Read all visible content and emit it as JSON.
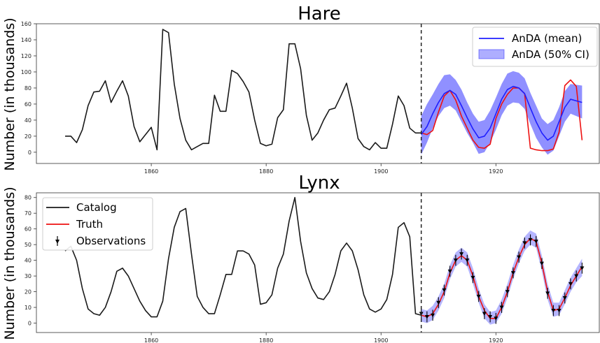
{
  "chart_data": [
    {
      "type": "line",
      "title": "Hare",
      "xlabel": "",
      "ylabel": "Number (in thousands)",
      "xlim": [
        1840,
        1938
      ],
      "ylim": [
        -14,
        160
      ],
      "xticks": [
        1860,
        1880,
        1900,
        1920
      ],
      "yticks": [
        0,
        20,
        40,
        60,
        80,
        100,
        120,
        140,
        160
      ],
      "vline_x": 1907,
      "legend": {
        "position": "top-right",
        "entries": [
          {
            "label": "AnDA (mean)",
            "kind": "line",
            "color": "#1f1fff"
          },
          {
            "label": "AnDA (50% CI)",
            "kind": "band",
            "color": "#6b6bff"
          }
        ]
      },
      "series": [
        {
          "name": "Catalog",
          "color": "#1a1a1a",
          "x": [
            1845,
            1846,
            1847,
            1848,
            1849,
            1850,
            1851,
            1852,
            1853,
            1854,
            1855,
            1856,
            1857,
            1858,
            1859,
            1860,
            1861,
            1862,
            1863,
            1864,
            1865,
            1866,
            1867,
            1868,
            1869,
            1870,
            1871,
            1872,
            1873,
            1874,
            1875,
            1876,
            1877,
            1878,
            1879,
            1880,
            1881,
            1882,
            1883,
            1884,
            1885,
            1886,
            1887,
            1888,
            1889,
            1890,
            1891,
            1892,
            1893,
            1894,
            1895,
            1896,
            1897,
            1898,
            1899,
            1900,
            1901,
            1902,
            1903,
            1904,
            1905,
            1906,
            1907
          ],
          "values": [
            20,
            20,
            12,
            28,
            58,
            75,
            76,
            89,
            62,
            76,
            89,
            70,
            32,
            13,
            22,
            31,
            3,
            153,
            149,
            85,
            42,
            15,
            3,
            7,
            11,
            11,
            71,
            51,
            51,
            102,
            98,
            88,
            75,
            40,
            11,
            8,
            10,
            43,
            53,
            135,
            135,
            104,
            46,
            15,
            24,
            40,
            53,
            55,
            70,
            86,
            55,
            17,
            7,
            3,
            12,
            5,
            5,
            35,
            70,
            58,
            30,
            24,
            24
          ]
        },
        {
          "name": "Truth",
          "color": "#ee1111",
          "x": [
            1907,
            1908,
            1909,
            1910,
            1911,
            1912,
            1913,
            1914,
            1915,
            1916,
            1917,
            1918,
            1919,
            1920,
            1921,
            1922,
            1923,
            1924,
            1925,
            1926,
            1927,
            1928,
            1929,
            1930,
            1931,
            1932,
            1933,
            1934,
            1935
          ],
          "values": [
            24,
            22,
            27,
            50,
            70,
            77,
            65,
            45,
            30,
            15,
            6,
            5,
            10,
            42,
            60,
            72,
            80,
            80,
            73,
            5,
            3,
            2,
            2,
            4,
            25,
            83,
            90,
            82,
            15
          ]
        },
        {
          "name": "AnDA (mean)",
          "color": "#1f1fff",
          "x": [
            1907,
            1908,
            1909,
            1910,
            1911,
            1912,
            1913,
            1914,
            1915,
            1916,
            1917,
            1918,
            1919,
            1920,
            1921,
            1922,
            1923,
            1924,
            1925,
            1926,
            1927,
            1928,
            1929,
            1930,
            1931,
            1932,
            1933,
            1934,
            1935
          ],
          "values": [
            22,
            32,
            48,
            62,
            73,
            77,
            72,
            58,
            43,
            29,
            18,
            20,
            30,
            48,
            66,
            78,
            82,
            80,
            73,
            55,
            38,
            24,
            15,
            20,
            38,
            56,
            66,
            64,
            62
          ]
        }
      ],
      "band": {
        "name": "AnDA (50% CI)",
        "x": [
          1907,
          1908,
          1909,
          1910,
          1911,
          1912,
          1913,
          1914,
          1915,
          1916,
          1917,
          1918,
          1919,
          1920,
          1921,
          1922,
          1923,
          1924,
          1925,
          1926,
          1927,
          1928,
          1929,
          1930,
          1931,
          1932,
          1933,
          1934,
          1935
        ],
        "lower": [
          -3,
          12,
          30,
          45,
          55,
          58,
          52,
          38,
          24,
          12,
          -2,
          0,
          12,
          28,
          46,
          58,
          62,
          61,
          54,
          35,
          18,
          6,
          -3,
          2,
          20,
          38,
          48,
          45,
          42
        ],
        "upper": [
          45,
          60,
          72,
          85,
          96,
          97,
          90,
          78,
          62,
          48,
          38,
          40,
          52,
          68,
          85,
          98,
          101,
          99,
          92,
          74,
          58,
          42,
          35,
          40,
          56,
          76,
          85,
          84,
          83
        ]
      }
    },
    {
      "type": "line",
      "title": "Lynx",
      "xlabel": "",
      "ylabel": "Number (in thousands)",
      "xlim": [
        1840,
        1938
      ],
      "ylim": [
        -6,
        83
      ],
      "xticks": [
        1860,
        1880,
        1900,
        1920
      ],
      "yticks": [
        0,
        10,
        20,
        30,
        40,
        50,
        60,
        70,
        80
      ],
      "vline_x": 1907,
      "legend": {
        "position": "top-left",
        "entries": [
          {
            "label": "Catalog",
            "kind": "line",
            "color": "#1a1a1a"
          },
          {
            "label": "Truth",
            "kind": "line",
            "color": "#ee1111"
          },
          {
            "label": "Observations",
            "kind": "errorbar",
            "color": "#000000"
          }
        ]
      },
      "series": [
        {
          "name": "Catalog",
          "color": "#1a1a1a",
          "x": [
            1845,
            1846,
            1847,
            1848,
            1849,
            1850,
            1851,
            1852,
            1853,
            1854,
            1855,
            1856,
            1857,
            1858,
            1859,
            1860,
            1861,
            1862,
            1863,
            1864,
            1865,
            1866,
            1867,
            1868,
            1869,
            1870,
            1871,
            1872,
            1873,
            1874,
            1875,
            1876,
            1877,
            1878,
            1879,
            1880,
            1881,
            1882,
            1883,
            1884,
            1885,
            1886,
            1887,
            1888,
            1889,
            1890,
            1891,
            1892,
            1893,
            1894,
            1895,
            1896,
            1897,
            1898,
            1899,
            1900,
            1901,
            1902,
            1903,
            1904,
            1905,
            1906,
            1907
          ],
          "values": [
            46,
            49,
            40,
            22,
            9,
            6,
            5,
            10,
            20,
            33,
            35,
            30,
            22,
            14,
            8,
            4,
            4,
            14,
            41,
            61,
            71,
            73,
            44,
            17,
            10,
            6,
            6,
            18,
            31,
            31,
            46,
            46,
            44,
            37,
            12,
            13,
            18,
            35,
            44,
            65,
            80,
            52,
            32,
            22,
            16,
            15,
            20,
            31,
            46,
            51,
            46,
            34,
            18,
            9,
            7,
            9,
            15,
            31,
            61,
            64,
            55,
            6,
            5
          ]
        },
        {
          "name": "Truth",
          "color": "#ee1111",
          "x": [
            1907,
            1908,
            1909,
            1910,
            1911,
            1912,
            1913,
            1914,
            1915,
            1916,
            1917,
            1918,
            1919,
            1920,
            1921,
            1922,
            1923,
            1924,
            1925,
            1926,
            1927,
            1928,
            1929,
            1930,
            1931,
            1932,
            1933,
            1934,
            1935
          ],
          "values": [
            5,
            4,
            6,
            12,
            20,
            32,
            40,
            43,
            40,
            30,
            17,
            8,
            3,
            3,
            10,
            20,
            32,
            42,
            50,
            54,
            52,
            38,
            20,
            8,
            9,
            16,
            24,
            30,
            36
          ]
        },
        {
          "name": "Observations",
          "color": "#000000",
          "x": [
            1907,
            1908,
            1909,
            1910,
            1911,
            1912,
            1913,
            1914,
            1915,
            1916,
            1917,
            1918,
            1919,
            1920,
            1921,
            1922,
            1923,
            1924,
            1925,
            1926,
            1927,
            1928,
            1929,
            1930,
            1931,
            1932,
            1933,
            1934,
            1935
          ],
          "values": [
            6,
            4,
            5,
            13,
            21,
            33,
            40,
            44,
            40,
            29,
            17,
            6,
            4,
            3,
            10,
            20,
            32,
            42,
            51,
            53,
            52,
            38,
            19,
            8,
            8,
            16,
            25,
            30,
            35
          ]
        }
      ],
      "band": {
        "name": "AnDA (50% CI)",
        "x": [
          1907,
          1908,
          1909,
          1910,
          1911,
          1912,
          1913,
          1914,
          1915,
          1916,
          1917,
          1918,
          1919,
          1920,
          1921,
          1922,
          1923,
          1924,
          1925,
          1926,
          1927,
          1928,
          1929,
          1930,
          1931,
          1932,
          1933,
          1934,
          1935
        ],
        "lower": [
          1,
          0,
          2,
          8,
          16,
          28,
          36,
          39,
          36,
          25,
          13,
          3,
          -1,
          0,
          6,
          16,
          28,
          38,
          46,
          50,
          48,
          33,
          15,
          4,
          5,
          12,
          20,
          26,
          30
        ],
        "upper": [
          9,
          8,
          11,
          17,
          25,
          37,
          45,
          48,
          45,
          35,
          22,
          12,
          7,
          8,
          15,
          25,
          37,
          47,
          55,
          59,
          57,
          43,
          25,
          13,
          13,
          21,
          29,
          35,
          41
        ]
      }
    }
  ]
}
